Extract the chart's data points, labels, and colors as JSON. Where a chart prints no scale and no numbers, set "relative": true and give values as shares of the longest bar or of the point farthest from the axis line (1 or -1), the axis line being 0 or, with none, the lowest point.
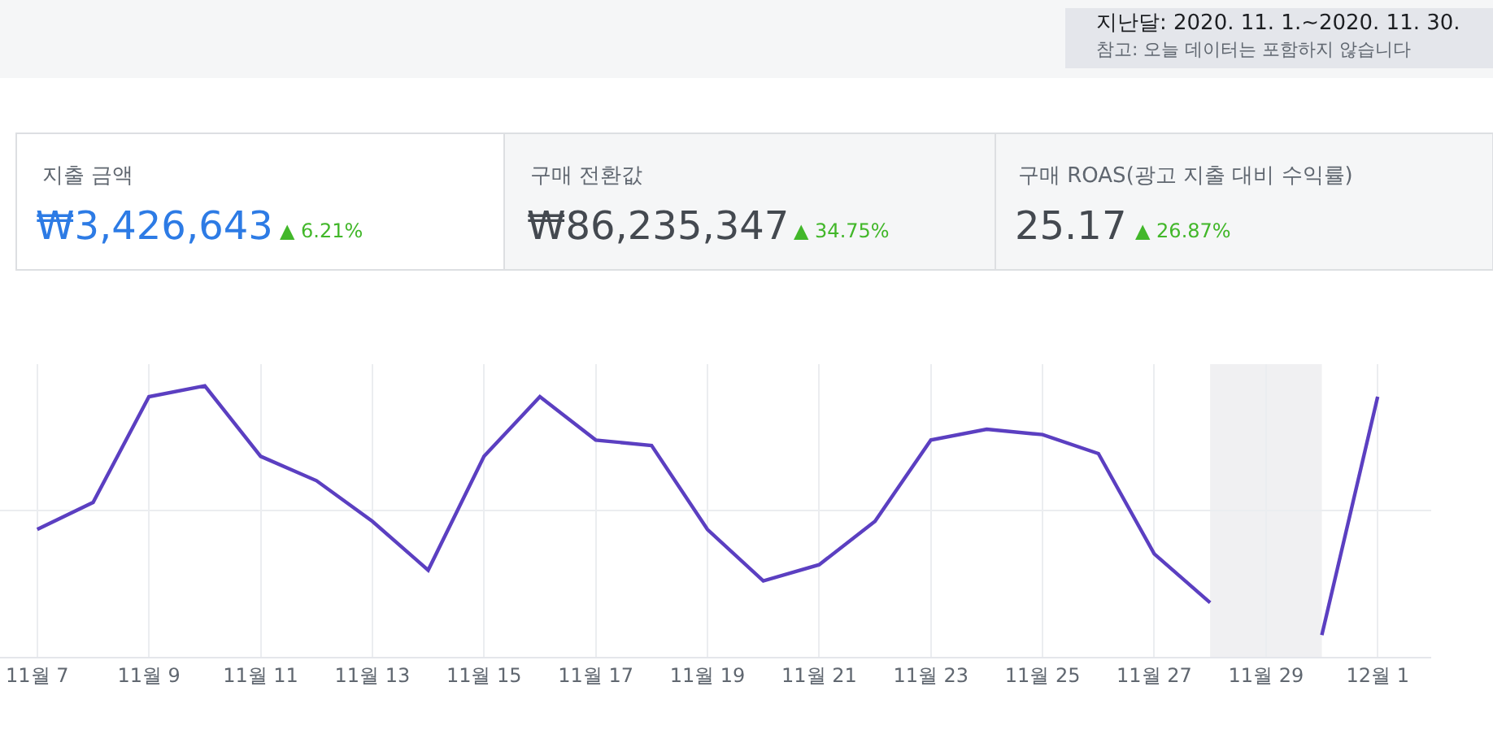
{
  "chart_data": {
    "type": "line",
    "relative": true,
    "grid": true,
    "marker": "none",
    "line_style": "solid",
    "x": [
      "2020-11-07",
      "2020-11-08",
      "2020-11-09",
      "2020-11-10",
      "2020-11-11",
      "2020-11-12",
      "2020-11-13",
      "2020-11-14",
      "2020-11-15",
      "2020-11-16",
      "2020-11-17",
      "2020-11-18",
      "2020-11-19",
      "2020-11-20",
      "2020-11-21",
      "2020-11-22",
      "2020-11-23",
      "2020-11-24",
      "2020-11-25",
      "2020-11-26",
      "2020-11-27",
      "2020-11-28",
      "2020-11-29",
      "2020-11-30",
      "2020-12-01"
    ],
    "series": [
      {
        "color": "#5b3fc1",
        "values": [
          0.47,
          0.57,
          0.96,
          1.0,
          0.74,
          0.65,
          0.5,
          0.32,
          0.74,
          0.96,
          0.8,
          0.78,
          0.47,
          0.28,
          0.34,
          0.5,
          0.8,
          0.84,
          0.82,
          0.75,
          0.38,
          0.2,
          null,
          0.08,
          0.96
        ]
      }
    ],
    "xlim": [
      "2020-11-06T08:00",
      "2020-12-01T23:00"
    ],
    "xticks": [
      {
        "value": "2020-11-07",
        "label": "11월 7"
      },
      {
        "value": "2020-11-09",
        "label": "11월 9"
      },
      {
        "value": "2020-11-11",
        "label": "11월 11"
      },
      {
        "value": "2020-11-13",
        "label": "11월 13"
      },
      {
        "value": "2020-11-15",
        "label": "11월 15"
      },
      {
        "value": "2020-11-17",
        "label": "11월 17"
      },
      {
        "value": "2020-11-19",
        "label": "11월 19"
      },
      {
        "value": "2020-11-21",
        "label": "11월 21"
      },
      {
        "value": "2020-11-23",
        "label": "11월 23"
      },
      {
        "value": "2020-11-25",
        "label": "11월 25"
      },
      {
        "value": "2020-11-27",
        "label": "11월 27"
      },
      {
        "value": "2020-11-29",
        "label": "11월 29"
      },
      {
        "value": "2020-12-01",
        "label": "12월 1"
      }
    ],
    "bands": [
      {
        "axis": "x",
        "from": "2020-11-28",
        "to": "2020-11-30",
        "color": "#f0f0f2"
      }
    ],
    "annotations": [
      "지난달: 2020. 11. 1.~2020. 11. 30.",
      "참고: 오늘 데이터는 포함하지 않습니다",
      "지출 금액",
      "₩3,426,643",
      "▲ 6.21%",
      "구매 전환값",
      "₩86,235,347",
      "▲ 34.75%",
      "구매 ROAS(광고 지출 대비 수익률)",
      "25.17",
      "▲ 26.87%"
    ]
  }
}
